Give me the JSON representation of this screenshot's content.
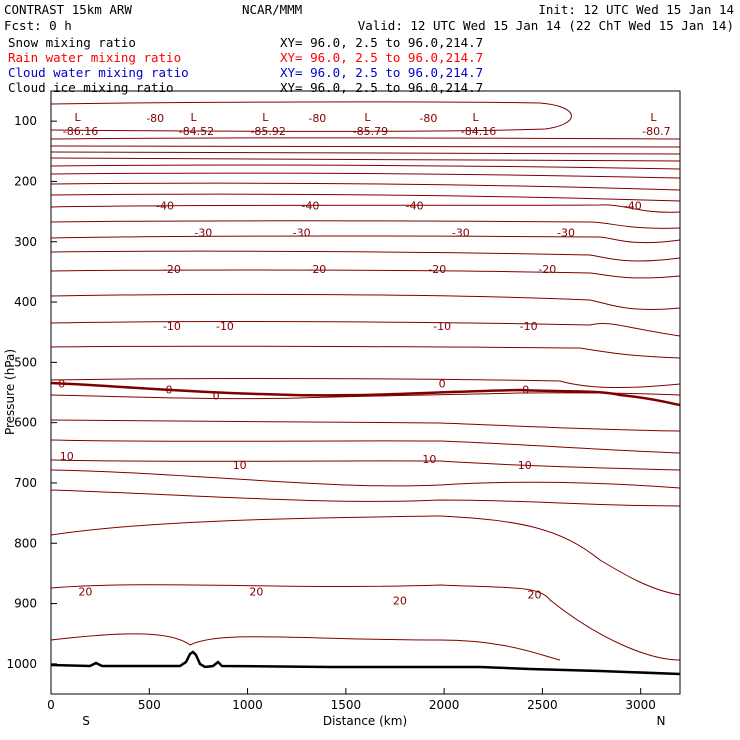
{
  "header": {
    "model": "CONTRAST 15km ARW",
    "center": "NCAR/MMM",
    "init": "Init: 12 UTC Wed 15 Jan 14",
    "fcst": "Fcst:     0 h",
    "valid": "Valid: 12 UTC Wed 15 Jan 14 (22 ChT Wed 15 Jan 14)"
  },
  "legend": [
    {
      "label": "Snow mixing ratio",
      "xy": "XY=  96.0,  2.5 to  96.0,214.7",
      "color": "#000000"
    },
    {
      "label": "Rain water mixing ratio",
      "xy": "XY=  96.0,  2.5 to  96.0,214.7",
      "color": "#ff0000"
    },
    {
      "label": "Cloud water mixing ratio",
      "xy": "XY=  96.0,  2.5 to  96.0,214.7",
      "color": "#0000cd"
    },
    {
      "label": "Cloud ice mixing ratio",
      "xy": "XY=  96.0,  2.5 to  96.0,214.7",
      "color": "#000000"
    }
  ],
  "chart_data": {
    "type": "contour",
    "xlabel": "Distance (km)",
    "ylabel": "Pressure (hPa)",
    "xlim": [
      0,
      3200
    ],
    "ylim": [
      50,
      1050
    ],
    "x_ticks": [
      "0",
      "500",
      "1000",
      "1500",
      "2000",
      "2500",
      "3000"
    ],
    "y_ticks": [
      "100",
      "200",
      "300",
      "400",
      "500",
      "600",
      "700",
      "800",
      "900",
      "1000"
    ],
    "direction_labels": {
      "left": "S",
      "right": "N"
    },
    "contour_color": "#800000",
    "contour_labels": [
      {
        "text": "-80",
        "x": 530,
        "p": 95
      },
      {
        "text": "-80",
        "x": 1355,
        "p": 95
      },
      {
        "text": "-80",
        "x": 1920,
        "p": 95
      },
      {
        "text": "-40",
        "x": 580,
        "p": 240
      },
      {
        "text": "-40",
        "x": 1320,
        "p": 240
      },
      {
        "text": "-40",
        "x": 1850,
        "p": 240
      },
      {
        "text": "-40",
        "x": 2960,
        "p": 240
      },
      {
        "text": "-30",
        "x": 775,
        "p": 285
      },
      {
        "text": "-30",
        "x": 1275,
        "p": 285
      },
      {
        "text": "-30",
        "x": 2085,
        "p": 285
      },
      {
        "text": "-30",
        "x": 2620,
        "p": 285
      },
      {
        "text": "-20",
        "x": 615,
        "p": 345
      },
      {
        "text": "-20",
        "x": 1355,
        "p": 345
      },
      {
        "text": "-20",
        "x": 1965,
        "p": 345
      },
      {
        "text": "-20",
        "x": 2525,
        "p": 345
      },
      {
        "text": "-10",
        "x": 615,
        "p": 440
      },
      {
        "text": "-10",
        "x": 885,
        "p": 440
      },
      {
        "text": "-10",
        "x": 1990,
        "p": 440
      },
      {
        "text": "-10",
        "x": 2430,
        "p": 440
      },
      {
        "text": "0",
        "x": 55,
        "p": 535
      },
      {
        "text": "0",
        "x": 600,
        "p": 545
      },
      {
        "text": "0",
        "x": 840,
        "p": 555
      },
      {
        "text": "0",
        "x": 1990,
        "p": 535
      },
      {
        "text": "0",
        "x": 2415,
        "p": 545
      },
      {
        "text": "10",
        "x": 80,
        "p": 655
      },
      {
        "text": "10",
        "x": 960,
        "p": 670
      },
      {
        "text": "10",
        "x": 1925,
        "p": 660
      },
      {
        "text": "10",
        "x": 2410,
        "p": 670
      },
      {
        "text": "20",
        "x": 175,
        "p": 880
      },
      {
        "text": "20",
        "x": 1045,
        "p": 880
      },
      {
        "text": "20",
        "x": 1775,
        "p": 895
      },
      {
        "text": "20",
        "x": 2460,
        "p": 885
      }
    ],
    "lows": [
      {
        "value": "-86.16",
        "x": 150,
        "p": 100
      },
      {
        "value": "-84.52",
        "x": 740,
        "p": 100
      },
      {
        "value": "-85.92",
        "x": 1105,
        "p": 100
      },
      {
        "value": "-85.79",
        "x": 1625,
        "p": 100
      },
      {
        "value": "-84.16",
        "x": 2175,
        "p": 100
      },
      {
        "value": "-80.7",
        "x": 3080,
        "p": 100
      }
    ]
  }
}
